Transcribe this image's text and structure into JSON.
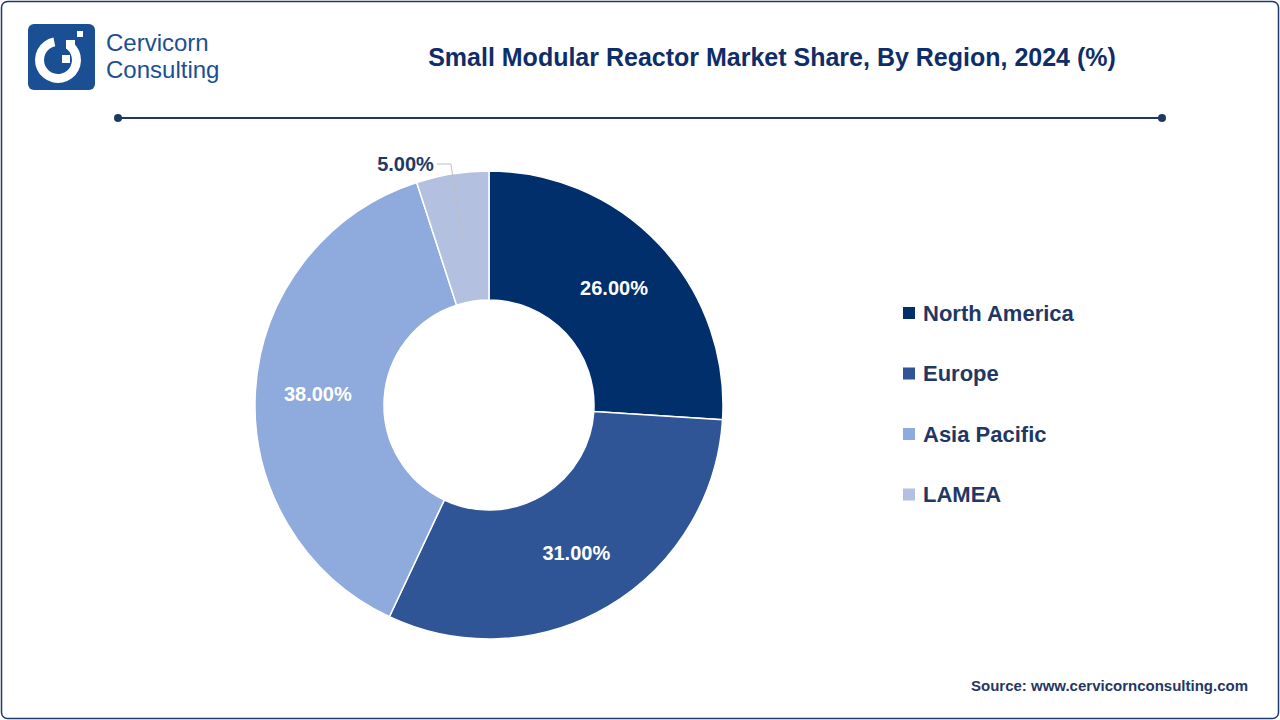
{
  "chart_data": {
    "type": "donut",
    "title": "Small Modular Reactor Market Share, By Region, 2024 (%)",
    "categories": [
      "North America",
      "Europe",
      "Asia Pacific",
      "LAMEA"
    ],
    "values": [
      26,
      31,
      38,
      5
    ],
    "value_labels": [
      "26.00%",
      "31.00%",
      "38.00%",
      "5.00%"
    ],
    "colors": [
      "#002f6c",
      "#2f5597",
      "#8faadc",
      "#b4c0e0"
    ],
    "data_labels": true,
    "legend": "right",
    "source": "Source: www.cervicornconsulting.com",
    "brand": [
      "Cervicorn",
      "Consulting"
    ]
  }
}
